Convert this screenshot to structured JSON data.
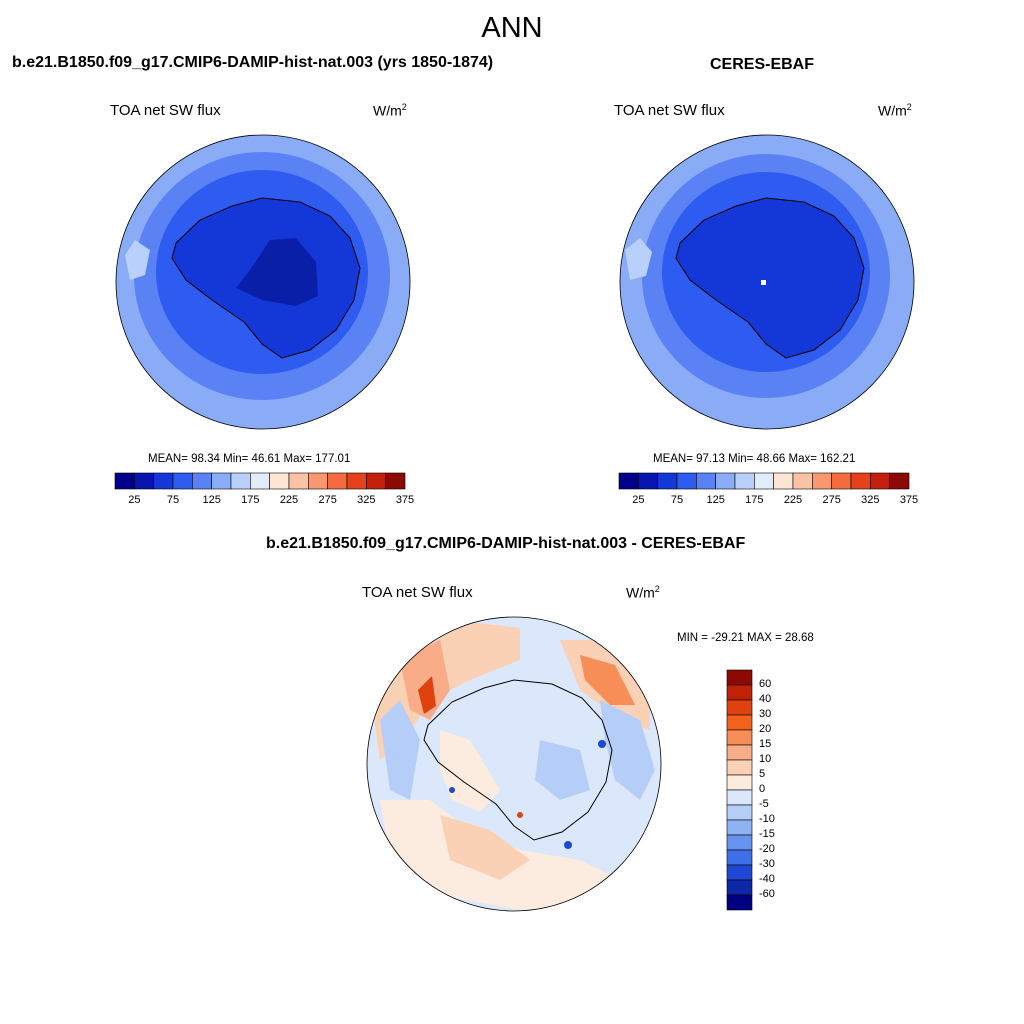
{
  "figure": {
    "title": "ANN"
  },
  "panels": [
    {
      "title": "b.e21.B1850.f09_g17.CMIP6-DAMIP-hist-nat.003 (yrs 1850-1874)",
      "variable": "TOA net SW flux",
      "units": "W/m",
      "units_sup": "2",
      "stats": "MEAN=  98.34  Min=  46.61  Max= 177.01"
    },
    {
      "title": "CERES-EBAF",
      "variable": "TOA net SW flux",
      "units": "W/m",
      "units_sup": "2",
      "stats": "MEAN=  97.13  Min=  48.66  Max= 162.21"
    },
    {
      "title": "b.e21.B1850.f09_g17.CMIP6-DAMIP-hist-nat.003 - CERES-EBAF",
      "variable": "TOA net SW flux",
      "units": "W/m",
      "units_sup": "2",
      "stats": "MIN = -29.21 MAX =  28.68"
    }
  ],
  "colorbar_abs": {
    "tick_labels": [
      "25",
      "75",
      "125",
      "175",
      "225",
      "275",
      "325",
      "375"
    ],
    "colors": [
      "#00008a",
      "#0614b0",
      "#1437d8",
      "#2f5cf0",
      "#5a82f4",
      "#8aabf6",
      "#b9d0fa",
      "#e2ecfb",
      "#fde6d4",
      "#fbc3a6",
      "#f8986f",
      "#f56a3e",
      "#e5411a",
      "#c41f0c",
      "#8c0a05"
    ]
  },
  "colorbar_diff": {
    "labels": [
      "60",
      "40",
      "30",
      "20",
      "15",
      "10",
      "5",
      "0",
      "-5",
      "-10",
      "-15",
      "-20",
      "-30",
      "-40",
      "-60"
    ],
    "colors": [
      "#8c0a05",
      "#bf2206",
      "#e0420f",
      "#f4611c",
      "#f78d57",
      "#f8ad88",
      "#fbd1b6",
      "#fcece0",
      "#dbe8fb",
      "#b5cef8",
      "#8fb2f4",
      "#6793f0",
      "#3f6ee9",
      "#1f47d3",
      "#0c27a8",
      "#000080"
    ]
  },
  "chart_data": {
    "type": "heatmap",
    "title": "ANN",
    "maps": [
      {
        "panel": "model",
        "projection": "south polar stereographic",
        "region": "Antarctica and Southern Ocean",
        "mean": 98.34,
        "min": 46.61,
        "max": 177.01,
        "units": "W/m2"
      },
      {
        "panel": "obs",
        "projection": "south polar stereographic",
        "region": "Antarctica and Southern Ocean",
        "mean": 97.13,
        "min": 48.66,
        "max": 162.21,
        "units": "W/m2"
      },
      {
        "panel": "diff",
        "projection": "south polar stereographic",
        "region": "Antarctica and Southern Ocean",
        "min": -29.21,
        "max": 28.68,
        "units": "W/m2"
      }
    ]
  }
}
